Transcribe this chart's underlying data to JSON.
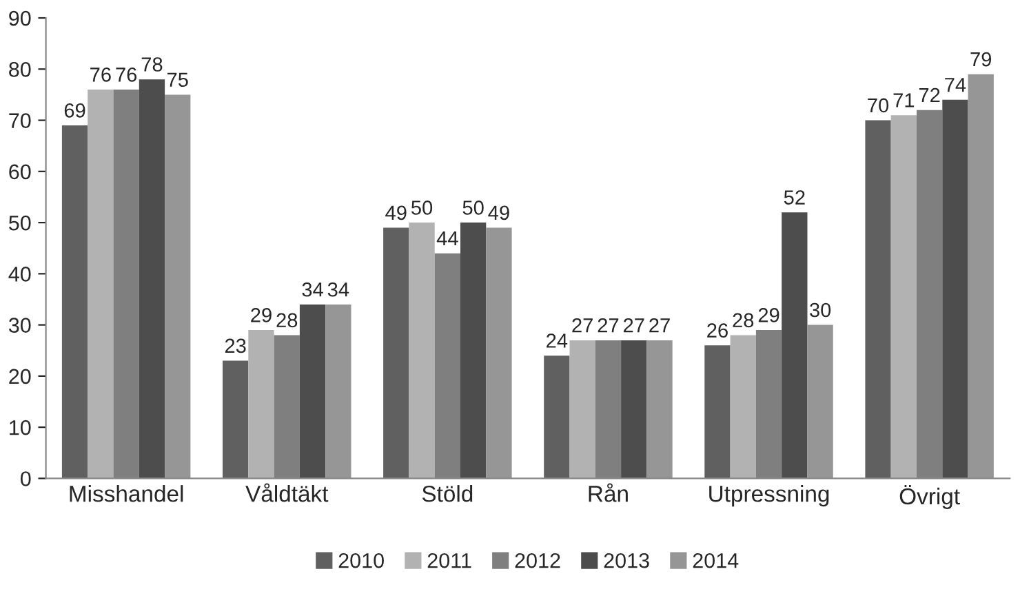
{
  "chart_data": {
    "type": "bar",
    "categories": [
      "Misshandel",
      "Våldtäkt",
      "Stöld",
      "Rån",
      "Utpressning",
      "Övrigt"
    ],
    "series": [
      {
        "name": "2010",
        "color": "#606060",
        "values": [
          69,
          23,
          49,
          24,
          26,
          70
        ]
      },
      {
        "name": "2011",
        "color": "#b2b2b2",
        "values": [
          76,
          29,
          50,
          27,
          28,
          71
        ]
      },
      {
        "name": "2012",
        "color": "#7f7f7f",
        "values": [
          76,
          28,
          44,
          27,
          29,
          72
        ]
      },
      {
        "name": "2013",
        "color": "#4d4d4d",
        "values": [
          78,
          34,
          50,
          27,
          52,
          74
        ]
      },
      {
        "name": "2014",
        "color": "#969696",
        "values": [
          75,
          34,
          49,
          27,
          30,
          79
        ]
      }
    ],
    "ylim": [
      0,
      90
    ],
    "yticks": [
      0,
      10,
      20,
      30,
      40,
      50,
      60,
      70,
      80,
      90
    ],
    "data_labels": true,
    "grid": false,
    "legend": "bottom"
  }
}
